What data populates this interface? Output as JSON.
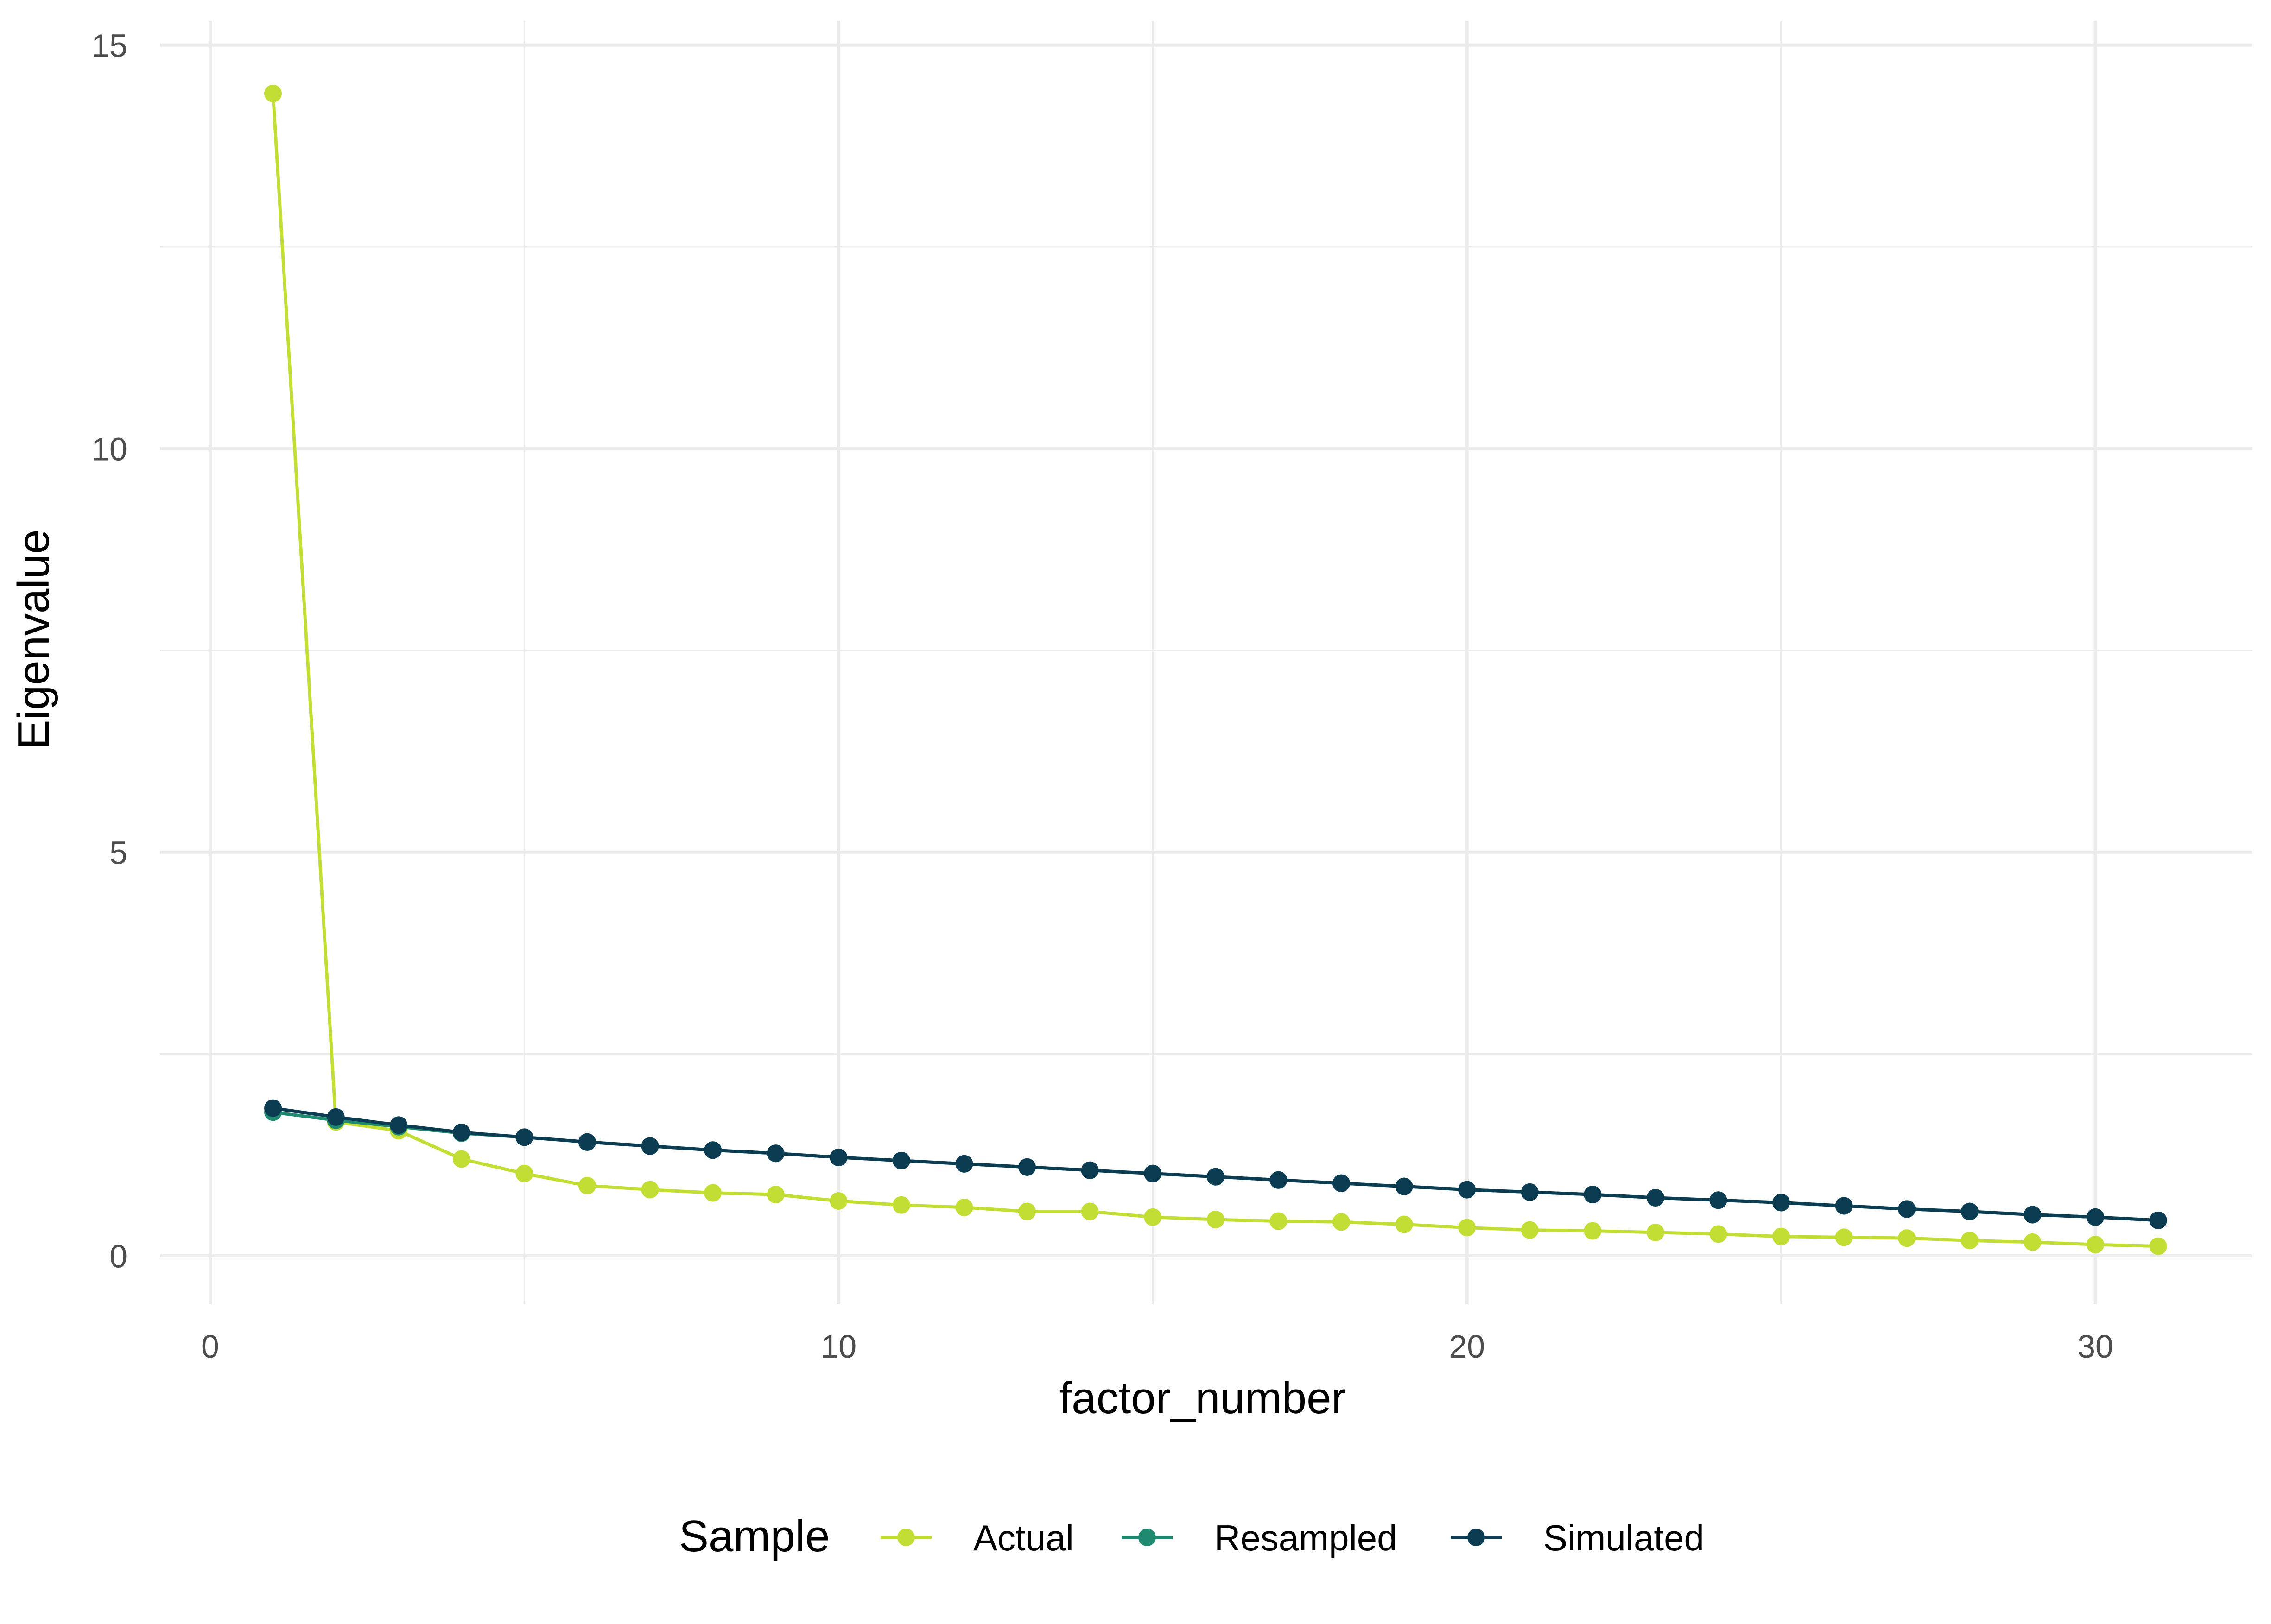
{
  "chart_data": {
    "type": "line",
    "xlabel": "factor_number",
    "ylabel": "Eigenvalue",
    "xlim": [
      -0.8,
      32.5
    ],
    "ylim": [
      -0.6,
      15.3
    ],
    "x_ticks": [
      0,
      10,
      20,
      30
    ],
    "y_ticks": [
      0,
      5,
      10,
      15
    ],
    "x_tick_labels": [
      "0",
      "10",
      "20",
      "30"
    ],
    "y_tick_labels": [
      "0",
      "5",
      "10",
      "15"
    ],
    "grid": true,
    "legend": {
      "title": "Sample",
      "position": "bottom"
    },
    "x": [
      1,
      2,
      3,
      4,
      5,
      6,
      7,
      8,
      9,
      10,
      11,
      12,
      13,
      14,
      15,
      16,
      17,
      18,
      19,
      20,
      21,
      22,
      23,
      24,
      25,
      26,
      27,
      28,
      29,
      30,
      31
    ],
    "series": [
      {
        "name": "Actual",
        "color": "#c2de34",
        "values": [
          14.4,
          1.66,
          1.55,
          1.2,
          1.02,
          0.87,
          0.82,
          0.78,
          0.76,
          0.68,
          0.63,
          0.6,
          0.55,
          0.55,
          0.48,
          0.45,
          0.43,
          0.42,
          0.39,
          0.35,
          0.32,
          0.31,
          0.29,
          0.27,
          0.24,
          0.23,
          0.22,
          0.19,
          0.17,
          0.14,
          0.12
        ]
      },
      {
        "name": "Resampled",
        "color": "#1f8a70",
        "values": [
          1.78,
          1.68,
          1.6,
          1.52,
          1.47,
          1.41,
          1.36,
          1.31,
          1.27,
          1.22,
          1.18,
          1.14,
          1.1,
          1.06,
          1.02,
          0.98,
          0.94,
          0.9,
          0.86,
          0.82,
          0.79,
          0.76,
          0.72,
          0.69,
          0.66,
          0.62,
          0.58,
          0.55,
          0.51,
          0.48,
          0.44
        ]
      },
      {
        "name": "Simulated",
        "color": "#0c3c52",
        "values": [
          1.83,
          1.72,
          1.62,
          1.53,
          1.47,
          1.41,
          1.36,
          1.31,
          1.27,
          1.22,
          1.18,
          1.14,
          1.1,
          1.06,
          1.02,
          0.98,
          0.94,
          0.9,
          0.86,
          0.82,
          0.79,
          0.76,
          0.72,
          0.69,
          0.66,
          0.62,
          0.58,
          0.55,
          0.51,
          0.48,
          0.44
        ]
      }
    ]
  }
}
